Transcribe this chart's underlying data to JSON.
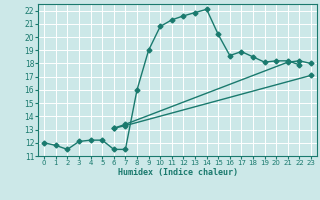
{
  "line1_x": [
    0,
    1,
    2,
    3,
    4,
    5,
    6,
    7,
    8,
    9,
    10,
    11,
    12,
    13,
    14,
    15,
    16,
    17,
    18,
    19,
    20,
    21,
    22
  ],
  "line1_y": [
    12.0,
    11.8,
    11.5,
    12.1,
    12.2,
    12.2,
    11.5,
    11.5,
    16.0,
    19.0,
    20.8,
    21.3,
    21.6,
    21.85,
    22.1,
    20.2,
    18.6,
    18.9,
    18.5,
    18.1,
    18.2,
    18.2,
    17.9
  ],
  "line2_x": [
    6,
    7,
    23
  ],
  "line2_y": [
    13.1,
    13.3,
    17.1
  ],
  "line3_x": [
    6,
    7,
    21,
    22,
    23
  ],
  "line3_y": [
    13.1,
    13.4,
    18.1,
    18.2,
    18.0
  ],
  "line_color": "#1a7a6e",
  "bg_color": "#cce8e8",
  "grid_color": "#b0d8d8",
  "xlabel": "Humidex (Indice chaleur)",
  "xlim": [
    -0.5,
    23.5
  ],
  "ylim": [
    11,
    22.5
  ],
  "xticks": [
    0,
    1,
    2,
    3,
    4,
    5,
    6,
    7,
    8,
    9,
    10,
    11,
    12,
    13,
    14,
    15,
    16,
    17,
    18,
    19,
    20,
    21,
    22,
    23
  ],
  "yticks": [
    11,
    12,
    13,
    14,
    15,
    16,
    17,
    18,
    19,
    20,
    21,
    22
  ],
  "markersize": 2.5,
  "linewidth": 1.0
}
